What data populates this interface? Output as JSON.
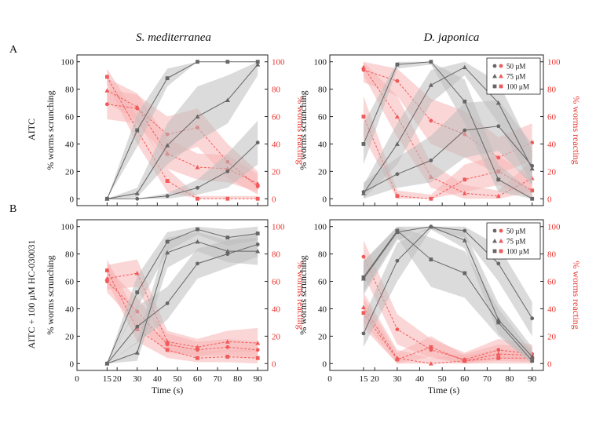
{
  "figure": {
    "col_titles": [
      "S. mediterranea",
      "D. japonica"
    ],
    "row_letters": [
      "A",
      "B"
    ],
    "row_labels": [
      "AITC",
      "AITC + 100 µM HC-030031"
    ],
    "ylabel_left": "% worms scrunching",
    "ylabel_right": "% worms reacting",
    "xlabel": "Time (s)",
    "legend": [
      "50 µM",
      "75 µM",
      "100 µM"
    ],
    "colors": {
      "scrunch": "#666666",
      "scrunch_band": "#bdbdbd",
      "react": "#f05a5a",
      "react_band": "#f7b4b4",
      "axis_right": "#e8332e"
    }
  },
  "chart_data": [
    {
      "type": "line",
      "panel": "A-left",
      "title": "S. mediterranea",
      "row": "AITC",
      "x": [
        15,
        30,
        45,
        60,
        75,
        90
      ],
      "xlim": [
        0,
        95
      ],
      "ylim": [
        -5,
        105
      ],
      "xticks": [
        0,
        15,
        20,
        30,
        40,
        50,
        60,
        70,
        80,
        90
      ],
      "yticks": [
        0,
        20,
        40,
        60,
        80,
        100
      ],
      "xlabel": "",
      "ylabel": "% worms scrunching",
      "y2label": "% worms reacting",
      "legend_shown": false,
      "scrunching": [
        {
          "name": "50 µM",
          "marker": "circle",
          "values": [
            0,
            0,
            2,
            8,
            20,
            41
          ],
          "band": [
            [
              0,
              0
            ],
            [
              0,
              0
            ],
            [
              0,
              4
            ],
            [
              3,
              14
            ],
            [
              8,
              33
            ],
            [
              25,
              57
            ]
          ]
        },
        {
          "name": "75 µM",
          "marker": "triangle",
          "values": [
            0,
            4,
            39,
            60,
            72,
            98
          ],
          "band": [
            [
              0,
              0
            ],
            [
              1,
              8
            ],
            [
              25,
              55
            ],
            [
              42,
              82
            ],
            [
              55,
              90
            ],
            [
              90,
              100
            ]
          ]
        },
        {
          "name": "100 µM",
          "marker": "square",
          "values": [
            0,
            50,
            88,
            100,
            100,
            100
          ],
          "band": [
            [
              0,
              0
            ],
            [
              38,
              62
            ],
            [
              82,
              95
            ],
            [
              100,
              100
            ],
            [
              100,
              100
            ],
            [
              100,
              100
            ]
          ]
        }
      ],
      "reacting": [
        {
          "name": "50 µM",
          "marker": "circle",
          "values": [
            69,
            66,
            47,
            52,
            27,
            9
          ],
          "band": [
            [
              58,
              80
            ],
            [
              55,
              76
            ],
            [
              30,
              60
            ],
            [
              38,
              66
            ],
            [
              15,
              40
            ],
            [
              3,
              20
            ]
          ]
        },
        {
          "name": "75 µM",
          "marker": "triangle",
          "values": [
            79,
            67,
            33,
            23,
            22,
            11
          ],
          "band": [
            [
              70,
              88
            ],
            [
              57,
              77
            ],
            [
              22,
              44
            ],
            [
              14,
              33
            ],
            [
              12,
              32
            ],
            [
              5,
              18
            ]
          ]
        },
        {
          "name": "100 µM",
          "marker": "square",
          "values": [
            89,
            50,
            13,
            0,
            0,
            0
          ],
          "band": [
            [
              84,
              95
            ],
            [
              40,
              60
            ],
            [
              5,
              22
            ],
            [
              0,
              2
            ],
            [
              0,
              2
            ],
            [
              0,
              2
            ]
          ]
        }
      ]
    },
    {
      "type": "line",
      "panel": "A-right",
      "title": "D. japonica",
      "row": "AITC",
      "x": [
        15,
        30,
        45,
        60,
        75,
        90
      ],
      "xlim": [
        0,
        95
      ],
      "ylim": [
        -5,
        105
      ],
      "xticks": [
        0,
        15,
        20,
        30,
        40,
        50,
        60,
        70,
        80,
        90
      ],
      "yticks": [
        0,
        20,
        40,
        60,
        80,
        100
      ],
      "xlabel": "",
      "ylabel": "% worms scrunching",
      "y2label": "% worms reacting",
      "legend_shown": true,
      "scrunching": [
        {
          "name": "50 µM",
          "marker": "circle",
          "values": [
            5,
            18,
            28,
            50,
            53,
            24
          ],
          "band": [
            [
              0,
              12
            ],
            [
              8,
              30
            ],
            [
              12,
              46
            ],
            [
              30,
              70
            ],
            [
              35,
              72
            ],
            [
              10,
              40
            ]
          ]
        },
        {
          "name": "75 µM",
          "marker": "triangle",
          "values": [
            4,
            40,
            83,
            96,
            70,
            22
          ],
          "band": [
            [
              0,
              10
            ],
            [
              25,
              55
            ],
            [
              70,
              94
            ],
            [
              90,
              100
            ],
            [
              55,
              85
            ],
            [
              10,
              35
            ]
          ]
        },
        {
          "name": "100 µM",
          "marker": "square",
          "values": [
            40,
            98,
            100,
            71,
            14,
            0
          ],
          "band": [
            [
              25,
              55
            ],
            [
              95,
              100
            ],
            [
              98,
              100
            ],
            [
              55,
              87
            ],
            [
              5,
              25
            ],
            [
              0,
              5
            ]
          ]
        }
      ],
      "reacting": [
        {
          "name": "50 µM",
          "marker": "circle",
          "values": [
            94,
            86,
            57,
            47,
            30,
            41
          ],
          "band": [
            [
              85,
              100
            ],
            [
              75,
              95
            ],
            [
              40,
              73
            ],
            [
              30,
              64
            ],
            [
              18,
              45
            ],
            [
              28,
              55
            ]
          ]
        },
        {
          "name": "75 µM",
          "marker": "triangle",
          "values": [
            96,
            60,
            16,
            4,
            2,
            15
          ],
          "band": [
            [
              90,
              100
            ],
            [
              45,
              75
            ],
            [
              8,
              26
            ],
            [
              0,
              10
            ],
            [
              0,
              6
            ],
            [
              5,
              28
            ]
          ]
        },
        {
          "name": "100 µM",
          "marker": "square",
          "values": [
            60,
            2,
            0,
            14,
            20,
            6
          ],
          "band": [
            [
              45,
              75
            ],
            [
              0,
              6
            ],
            [
              0,
              3
            ],
            [
              5,
              25
            ],
            [
              10,
              32
            ],
            [
              0,
              14
            ]
          ]
        }
      ]
    },
    {
      "type": "line",
      "panel": "B-left",
      "title": "",
      "row": "AITC + 100 µM HC-030031",
      "x": [
        15,
        30,
        45,
        60,
        75,
        90
      ],
      "xlim": [
        0,
        95
      ],
      "ylim": [
        -5,
        105
      ],
      "xticks": [
        0,
        15,
        20,
        30,
        40,
        50,
        60,
        70,
        80,
        90
      ],
      "yticks": [
        0,
        20,
        40,
        60,
        80,
        100
      ],
      "xlabel": "Time (s)",
      "ylabel": "% worms scrunching",
      "y2label": "% worms reacting",
      "legend_shown": false,
      "scrunching": [
        {
          "name": "50 µM",
          "marker": "circle",
          "values": [
            0,
            27,
            44,
            73,
            80,
            87
          ],
          "band": [
            [
              0,
              0
            ],
            [
              15,
              42
            ],
            [
              32,
              56
            ],
            [
              62,
              84
            ],
            [
              70,
              90
            ],
            [
              78,
              96
            ]
          ]
        },
        {
          "name": "75 µM",
          "marker": "triangle",
          "values": [
            0,
            8,
            81,
            89,
            82,
            82
          ],
          "band": [
            [
              0,
              0
            ],
            [
              2,
              16
            ],
            [
              70,
              92
            ],
            [
              82,
              96
            ],
            [
              74,
              90
            ],
            [
              72,
              92
            ]
          ]
        },
        {
          "name": "100 µM",
          "marker": "square",
          "values": [
            0,
            52,
            89,
            98,
            92,
            95
          ],
          "band": [
            [
              0,
              0
            ],
            [
              40,
              64
            ],
            [
              82,
              96
            ],
            [
              94,
              100
            ],
            [
              86,
              98
            ],
            [
              90,
              100
            ]
          ]
        }
      ],
      "reacting": [
        {
          "name": "50 µM",
          "marker": "circle",
          "values": [
            60,
            38,
            14,
            10,
            12,
            10
          ],
          "band": [
            [
              52,
              70
            ],
            [
              28,
              48
            ],
            [
              8,
              22
            ],
            [
              5,
              16
            ],
            [
              6,
              18
            ],
            [
              4,
              16
            ]
          ]
        },
        {
          "name": "75 µM",
          "marker": "triangle",
          "values": [
            62,
            66,
            16,
            12,
            16,
            15
          ],
          "band": [
            [
              54,
              72
            ],
            [
              56,
              76
            ],
            [
              9,
              24
            ],
            [
              6,
              18
            ],
            [
              9,
              24
            ],
            [
              8,
              26
            ]
          ]
        },
        {
          "name": "100 µM",
          "marker": "square",
          "values": [
            68,
            25,
            10,
            4,
            5,
            4
          ],
          "band": [
            [
              60,
              76
            ],
            [
              16,
              35
            ],
            [
              4,
              17
            ],
            [
              1,
              9
            ],
            [
              1,
              10
            ],
            [
              0,
              10
            ]
          ]
        }
      ]
    },
    {
      "type": "line",
      "panel": "B-right",
      "title": "",
      "row": "AITC + 100 µM HC-030031",
      "x": [
        15,
        30,
        45,
        60,
        75,
        90
      ],
      "xlim": [
        0,
        95
      ],
      "ylim": [
        -5,
        105
      ],
      "xticks": [
        0,
        15,
        20,
        30,
        40,
        50,
        60,
        70,
        80,
        90
      ],
      "yticks": [
        0,
        20,
        40,
        60,
        80,
        100
      ],
      "xlabel": "Time (s)",
      "ylabel": "% worms scrunching",
      "y2label": "% worms reacting",
      "legend_shown": true,
      "scrunching": [
        {
          "name": "50 µM",
          "marker": "circle",
          "values": [
            22,
            75,
            100,
            97,
            73,
            33
          ],
          "band": [
            [
              12,
              34
            ],
            [
              60,
              88
            ],
            [
              98,
              100
            ],
            [
              92,
              100
            ],
            [
              60,
              86
            ],
            [
              20,
              45
            ]
          ]
        },
        {
          "name": "75 µM",
          "marker": "triangle",
          "values": [
            62,
            96,
            100,
            90,
            32,
            5
          ],
          "band": [
            [
              50,
              74
            ],
            [
              90,
              100
            ],
            [
              98,
              100
            ],
            [
              84,
              96
            ],
            [
              22,
              44
            ],
            [
              0,
              12
            ]
          ]
        },
        {
          "name": "100 µM",
          "marker": "square",
          "values": [
            63,
            97,
            76,
            66,
            30,
            2
          ],
          "band": [
            [
              52,
              75
            ],
            [
              92,
              100
            ],
            [
              56,
              92
            ],
            [
              48,
              82
            ],
            [
              20,
              40
            ],
            [
              0,
              8
            ]
          ]
        }
      ],
      "reacting": [
        {
          "name": "50 µM",
          "marker": "circle",
          "values": [
            78,
            25,
            10,
            3,
            10,
            7
          ],
          "band": [
            [
              65,
              90
            ],
            [
              14,
              36
            ],
            [
              4,
              18
            ],
            [
              0,
              8
            ],
            [
              4,
              18
            ],
            [
              2,
              14
            ]
          ]
        },
        {
          "name": "75 µM",
          "marker": "triangle",
          "values": [
            41,
            4,
            0,
            2,
            7,
            6
          ],
          "band": [
            [
              30,
              52
            ],
            [
              0,
              10
            ],
            [
              0,
              4
            ],
            [
              0,
              7
            ],
            [
              2,
              14
            ],
            [
              1,
              12
            ]
          ]
        },
        {
          "name": "100 µM",
          "marker": "square",
          "values": [
            37,
            3,
            12,
            2,
            4,
            4
          ],
          "band": [
            [
              26,
              48
            ],
            [
              0,
              8
            ],
            [
              5,
              20
            ],
            [
              0,
              6
            ],
            [
              0,
              10
            ],
            [
              0,
              10
            ]
          ]
        }
      ]
    }
  ]
}
